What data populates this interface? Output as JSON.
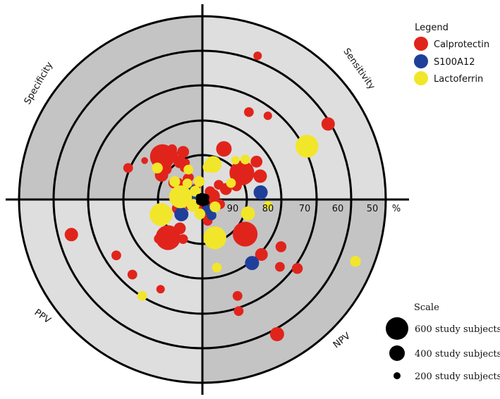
{
  "chart_data": {
    "type": "scatter",
    "subtype": "polar-target",
    "radial_axis": {
      "ticks": [
        "90",
        "80",
        "70",
        "60",
        "50"
      ],
      "unit": "%",
      "range": [
        50,
        100
      ]
    },
    "quadrants": {
      "top_left": "Specificity",
      "top_right": "Sensitivity",
      "bottom_left": "PPV",
      "bottom_right": "NPV"
    },
    "legend": {
      "title": "Legend",
      "position": "top-right",
      "items": [
        {
          "name": "Calprotectin",
          "color": "#e0241b"
        },
        {
          "name": "S100A12",
          "color": "#1f3f9a"
        },
        {
          "name": "Lactoferrin",
          "color": "#f2e62a"
        }
      ]
    },
    "size_scale": {
      "title": "Scale",
      "position": "bottom-right",
      "items": [
        {
          "subjects": 600,
          "label": "600 study subjects"
        },
        {
          "subjects": 400,
          "label": "400 study subjects"
        },
        {
          "subjects": 200,
          "label": "200 study subjects"
        }
      ]
    },
    "series": [
      {
        "name": "Calprotectin",
        "color": "#e0241b",
        "points": [
          {
            "metric": "Specificity",
            "value": 84,
            "angle": 133,
            "subjects": 300
          },
          {
            "metric": "Specificity",
            "value": 85,
            "angle": 126,
            "subjects": 100
          },
          {
            "metric": "Specificity",
            "value": 88,
            "angle": 121,
            "subjects": 60
          },
          {
            "metric": "Specificity",
            "value": 86,
            "angle": 112,
            "subjects": 50
          },
          {
            "metric": "Specificity",
            "value": 87,
            "angle": 140,
            "subjects": 50
          },
          {
            "metric": "Specificity",
            "value": 87,
            "angle": 149,
            "subjects": 70
          },
          {
            "metric": "Specificity",
            "value": 91,
            "angle": 150,
            "subjects": 40
          },
          {
            "metric": "Specificity",
            "value": 78,
            "angle": 157,
            "subjects": 30
          },
          {
            "metric": "Specificity",
            "value": 84,
            "angle": 121,
            "subjects": 30
          },
          {
            "metric": "Specificity",
            "value": 94,
            "angle": 137,
            "subjects": 60
          },
          {
            "metric": "Specificity",
            "value": 93,
            "angle": 125,
            "subjects": 30
          },
          {
            "metric": "Specificity",
            "value": 95,
            "angle": 162,
            "subjects": 150
          },
          {
            "metric": "Specificity",
            "value": 93,
            "angle": 120,
            "subjects": 20
          },
          {
            "metric": "Specificity",
            "value": 92,
            "angle": 144,
            "subjects": 20
          },
          {
            "metric": "Specificity",
            "value": 90,
            "angle": 120,
            "subjects": 20
          },
          {
            "metric": "Specificity",
            "value": 96,
            "angle": 112,
            "subjects": 15
          },
          {
            "metric": "Specificity",
            "value": 89,
            "angle": 114,
            "subjects": 15
          },
          {
            "metric": "Specificity",
            "value": 81,
            "angle": 146,
            "subjects": 10
          },
          {
            "metric": "Sensitivity",
            "value": 87,
            "angle": 34,
            "subjects": 300
          },
          {
            "metric": "Sensitivity",
            "value": 85,
            "angle": 67,
            "subjects": 100
          },
          {
            "metric": "Sensitivity",
            "value": 90,
            "angle": 77,
            "subjects": 40
          },
          {
            "metric": "Sensitivity",
            "value": 90,
            "angle": 68,
            "subjects": 30
          },
          {
            "metric": "Sensitivity",
            "value": 83,
            "angle": 22,
            "subjects": 70
          },
          {
            "metric": "Sensitivity",
            "value": 82,
            "angle": 35,
            "subjects": 50
          },
          {
            "metric": "Sensitivity",
            "value": 93,
            "angle": 24,
            "subjects": 50
          },
          {
            "metric": "Sensitivity",
            "value": 90,
            "angle": 22,
            "subjects": 40
          },
          {
            "metric": "Sensitivity",
            "value": 94,
            "angle": 42,
            "subjects": 30
          },
          {
            "metric": "Sensitivity",
            "value": 73,
            "angle": 62,
            "subjects": 30
          },
          {
            "metric": "Sensitivity",
            "value": 71,
            "angle": 52,
            "subjects": 20
          },
          {
            "metric": "Sensitivity",
            "value": 58,
            "angle": 69,
            "subjects": 20
          },
          {
            "metric": "Sensitivity",
            "value": 60,
            "angle": 31,
            "subjects": 70
          },
          {
            "metric": "Sensitivity",
            "value": 97,
            "angle": 18,
            "subjects": 80
          },
          {
            "metric": "Sensitivity",
            "value": 97,
            "angle": 45,
            "subjects": 40
          },
          {
            "metric": "PPV",
            "value": 98,
            "angle": 190,
            "subjects": 130
          },
          {
            "metric": "PPV",
            "value": 86,
            "angle": 228,
            "subjects": 300
          },
          {
            "metric": "PPV",
            "value": 93,
            "angle": 200,
            "subjects": 60
          },
          {
            "metric": "PPV",
            "value": 90,
            "angle": 232,
            "subjects": 50
          },
          {
            "metric": "PPV",
            "value": 84,
            "angle": 222,
            "subjects": 30
          },
          {
            "metric": "PPV",
            "value": 88,
            "angle": 244,
            "subjects": 30
          },
          {
            "metric": "PPV",
            "value": 63,
            "angle": 195,
            "subjects": 70
          },
          {
            "metric": "PPV",
            "value": 72,
            "angle": 213,
            "subjects": 30
          },
          {
            "metric": "PPV",
            "value": 72,
            "angle": 227,
            "subjects": 30
          },
          {
            "metric": "PPV",
            "value": 73,
            "angle": 245,
            "subjects": 20
          },
          {
            "metric": "PPV",
            "value": 96,
            "angle": 206,
            "subjects": 20
          },
          {
            "metric": "PPV",
            "value": 97,
            "angle": 260,
            "subjects": 15
          },
          {
            "metric": "PPV",
            "value": 96,
            "angle": 285,
            "subjects": 20
          },
          {
            "metric": "NPV",
            "value": 85,
            "angle": 321,
            "subjects": 300
          },
          {
            "metric": "NPV",
            "value": 98,
            "angle": 344,
            "subjects": 100
          },
          {
            "metric": "NPV",
            "value": 95,
            "angle": 345,
            "subjects": 30
          },
          {
            "metric": "NPV",
            "value": 78,
            "angle": 317,
            "subjects": 60
          },
          {
            "metric": "NPV",
            "value": 75,
            "angle": 329,
            "subjects": 40
          },
          {
            "metric": "NPV",
            "value": 72,
            "angle": 319,
            "subjects": 30
          },
          {
            "metric": "NPV",
            "value": 68,
            "angle": 324,
            "subjects": 40
          },
          {
            "metric": "NPV",
            "value": 72,
            "angle": 290,
            "subjects": 30
          },
          {
            "metric": "NPV",
            "value": 68,
            "angle": 288,
            "subjects": 30
          },
          {
            "metric": "NPV",
            "value": 58,
            "angle": 299,
            "subjects": 80
          },
          {
            "metric": "NPV",
            "value": 94,
            "angle": 284,
            "subjects": 30
          }
        ]
      },
      {
        "name": "S100A12",
        "color": "#1f3f9a",
        "points": [
          {
            "metric": "Specificity",
            "value": 96,
            "angle": 146,
            "subjects": 80
          },
          {
            "metric": "Specificity",
            "value": 98,
            "angle": 150,
            "subjects": 40
          },
          {
            "metric": "Sensitivity",
            "value": 84,
            "angle": 7,
            "subjects": 80
          },
          {
            "metric": "PPV",
            "value": 93,
            "angle": 215,
            "subjects": 80
          },
          {
            "metric": "NPV",
            "value": 78,
            "angle": 308,
            "subjects": 80
          },
          {
            "metric": "NPV",
            "value": 95,
            "angle": 300,
            "subjects": 30
          },
          {
            "metric": "NPV",
            "value": 97,
            "angle": 295,
            "subjects": 30
          }
        ]
      },
      {
        "name": "Lactoferrin",
        "color": "#f2e62a",
        "points": [
          {
            "metric": "Specificity",
            "value": 94,
            "angle": 173,
            "subjects": 250
          },
          {
            "metric": "Specificity",
            "value": 94,
            "angle": 133,
            "subjects": 30
          },
          {
            "metric": "Specificity",
            "value": 91,
            "angle": 147,
            "subjects": 40
          },
          {
            "metric": "Specificity",
            "value": 91,
            "angle": 115,
            "subjects": 30
          },
          {
            "metric": "Specificity",
            "value": 85,
            "angle": 145,
            "subjects": 40
          },
          {
            "metric": "Specificity",
            "value": 95,
            "angle": 100,
            "subjects": 40
          },
          {
            "metric": "Specificity",
            "value": 97,
            "angle": 131,
            "subjects": 40
          },
          {
            "metric": "Sensitivity",
            "value": 90,
            "angle": 73,
            "subjects": 120
          },
          {
            "metric": "Sensitivity",
            "value": 68,
            "angle": 27,
            "subjects": 250
          },
          {
            "metric": "Sensitivity",
            "value": 91,
            "angle": 80,
            "subjects": 40
          },
          {
            "metric": "Sensitivity",
            "value": 84,
            "angle": 43,
            "subjects": 30
          },
          {
            "metric": "Sensitivity",
            "value": 86,
            "angle": 50,
            "subjects": 20
          },
          {
            "metric": "Sensitivity",
            "value": 91,
            "angle": 30,
            "subjects": 30
          },
          {
            "metric": "PPV",
            "value": 88,
            "angle": 200,
            "subjects": 250
          },
          {
            "metric": "PPV",
            "value": 97,
            "angle": 212,
            "subjects": 60
          },
          {
            "metric": "PPV",
            "value": 96,
            "angle": 260,
            "subjects": 40
          },
          {
            "metric": "PPV",
            "value": 69,
            "angle": 238,
            "subjects": 30
          },
          {
            "metric": "NPV",
            "value": 89,
            "angle": 288,
            "subjects": 250
          },
          {
            "metric": "NPV",
            "value": 87,
            "angle": 343,
            "subjects": 80
          },
          {
            "metric": "NPV",
            "value": 82,
            "angle": 355,
            "subjects": 20
          },
          {
            "metric": "NPV",
            "value": 55,
            "angle": 338,
            "subjects": 40
          },
          {
            "metric": "NPV",
            "value": 81,
            "angle": 282,
            "subjects": 30
          },
          {
            "metric": "NPV",
            "value": 96,
            "angle": 330,
            "subjects": 40
          }
        ]
      }
    ]
  }
}
